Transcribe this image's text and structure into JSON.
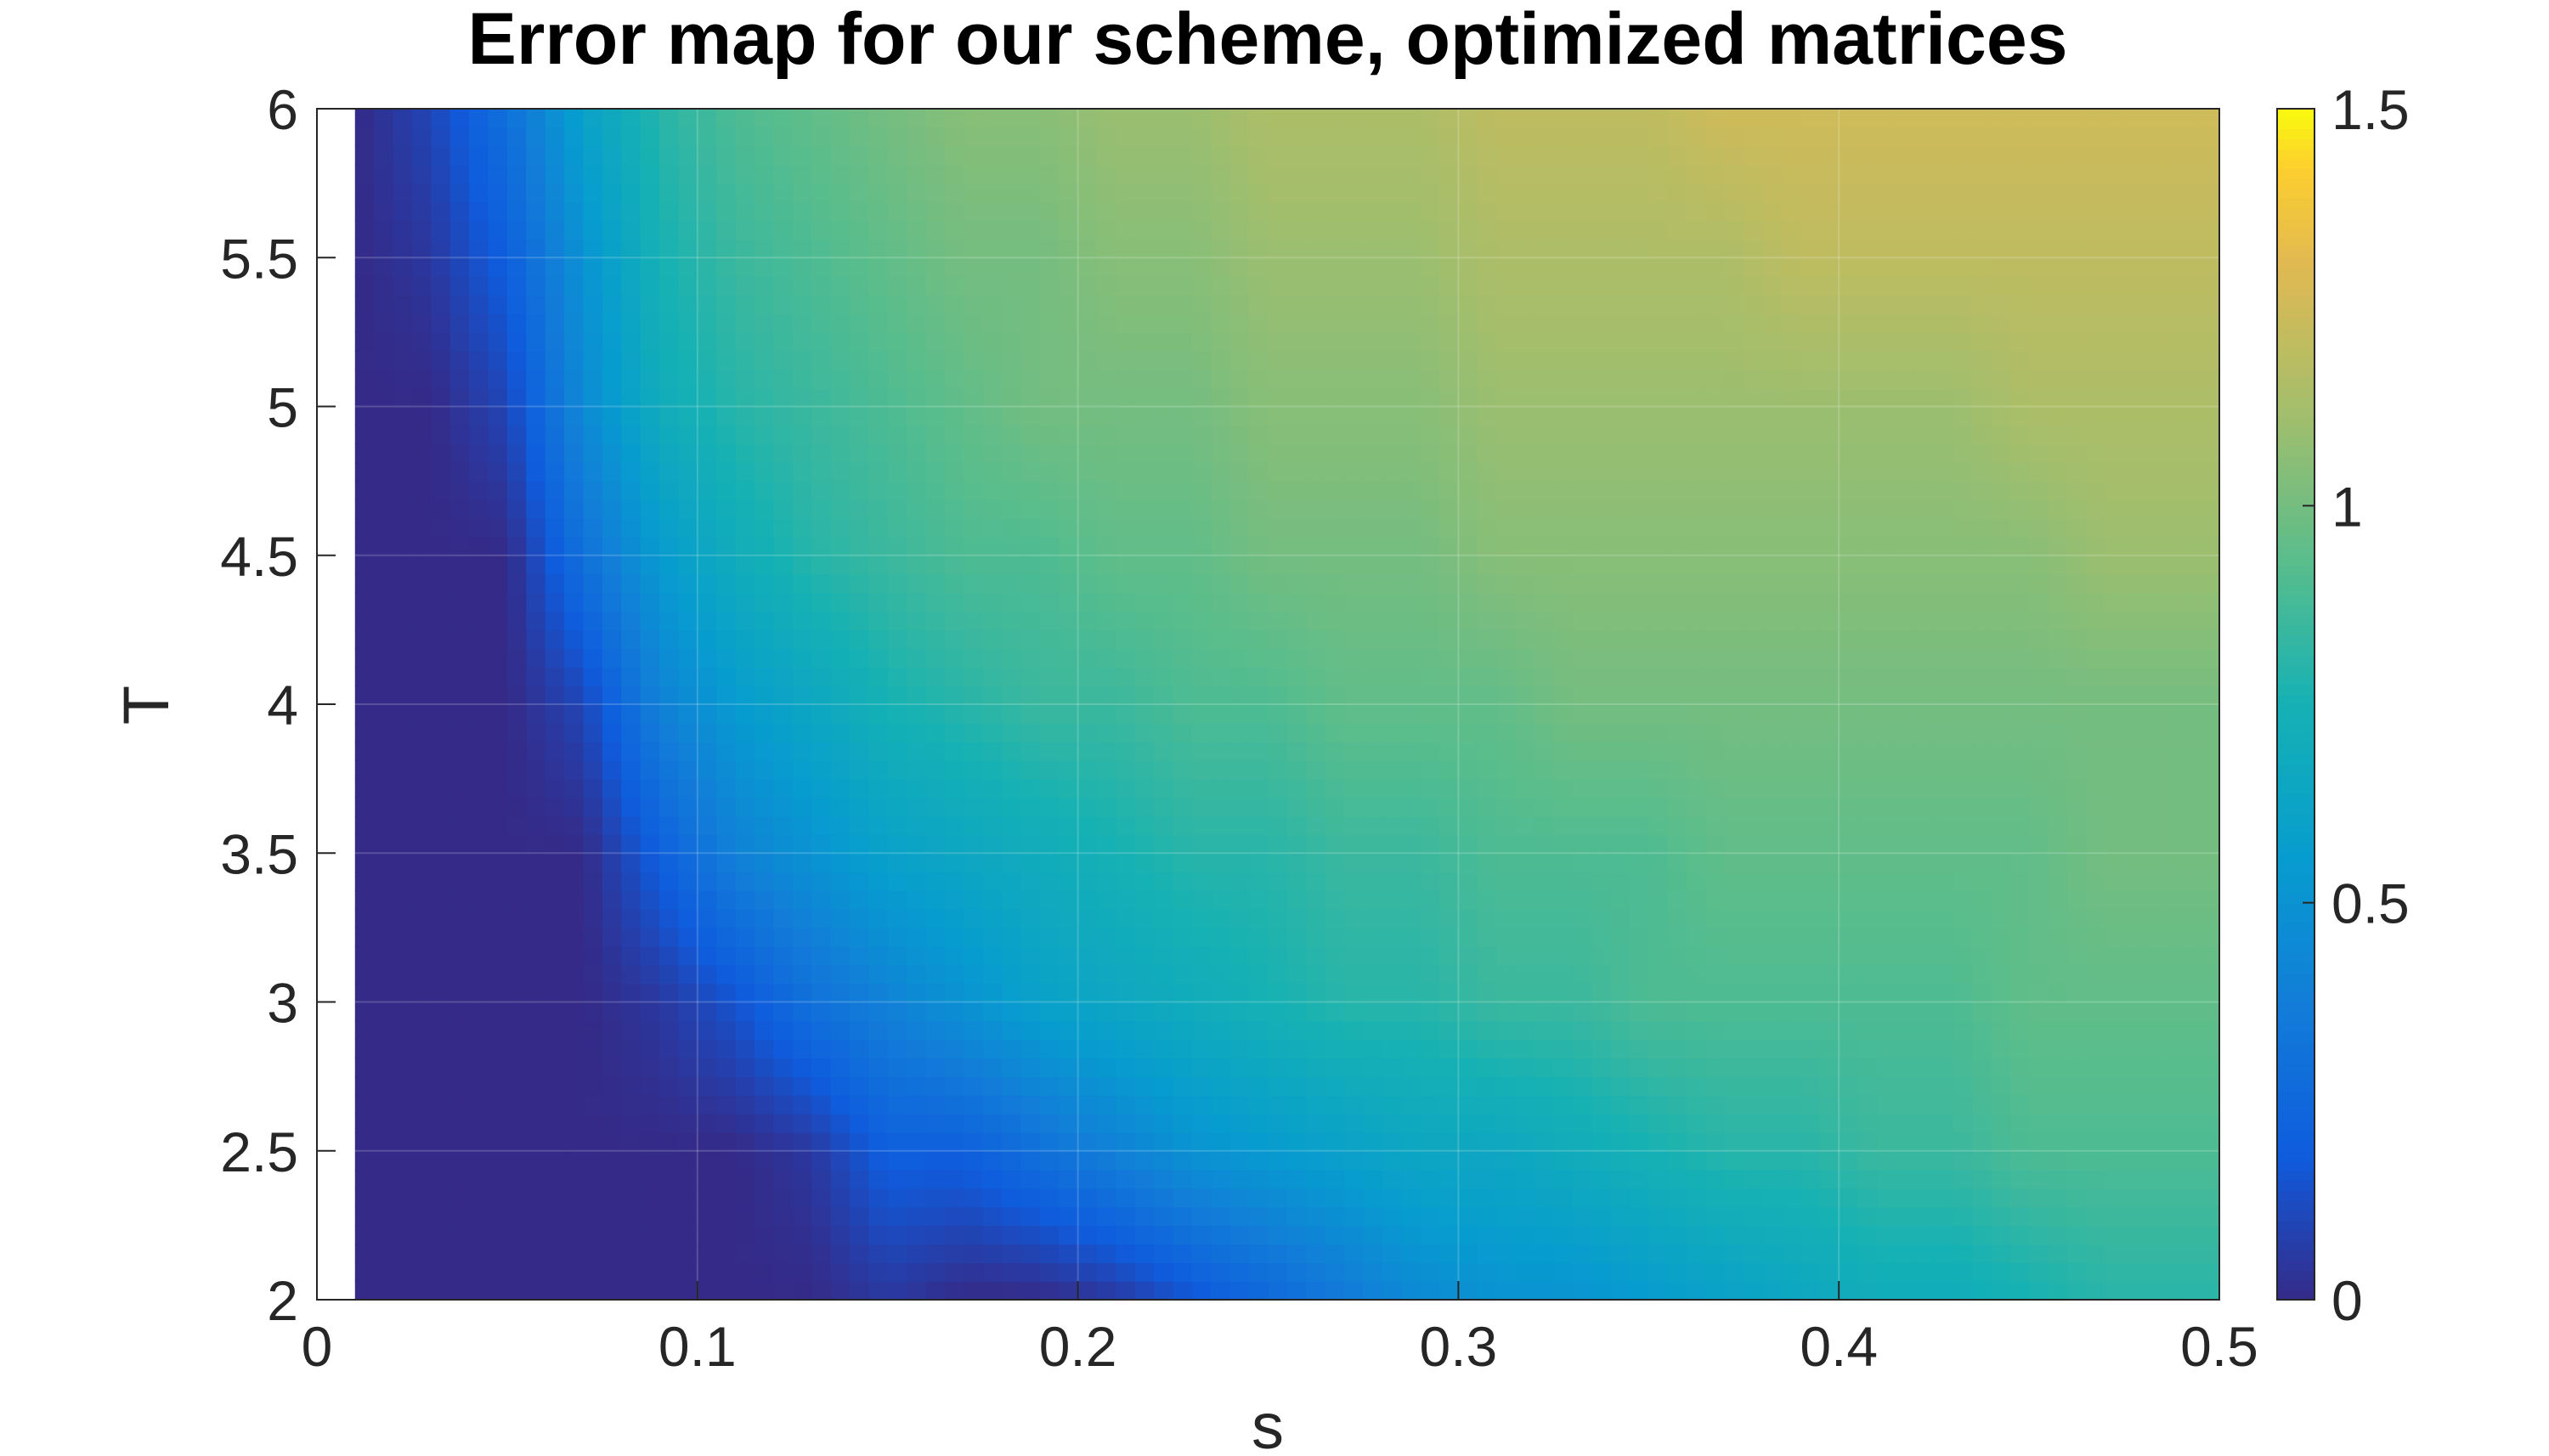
{
  "chart_data": {
    "type": "heatmap",
    "title": "Error map for our scheme, optimized matrices",
    "xlabel": "s",
    "ylabel": "T",
    "xlim": [
      0,
      0.5
    ],
    "ylim": [
      2,
      6
    ],
    "data_xlim": [
      0.01,
      0.5
    ],
    "x_ticks": [
      "0",
      "0.1",
      "0.2",
      "0.3",
      "0.4",
      "0.5"
    ],
    "y_ticks": [
      "2",
      "2.5",
      "3",
      "3.5",
      "4",
      "4.5",
      "5",
      "5.5",
      "6"
    ],
    "grid": true,
    "colormap": "parula",
    "colorbar": {
      "range": [
        0,
        1.5
      ],
      "ticks": [
        "0",
        "0.5",
        "1",
        "1.5"
      ],
      "position": "right"
    },
    "x": [
      0.01,
      0.03,
      0.05,
      0.07,
      0.09,
      0.11,
      0.13,
      0.15,
      0.17,
      0.19,
      0.21,
      0.23,
      0.25,
      0.27,
      0.29,
      0.31,
      0.33,
      0.35,
      0.37,
      0.39,
      0.41,
      0.43,
      0.45,
      0.47,
      0.49
    ],
    "y": [
      2.0,
      2.5,
      3.0,
      3.5,
      4.0,
      4.5,
      5.0,
      5.5,
      6.0
    ],
    "z": [
      [
        0.0,
        0.0,
        0.0,
        0.0,
        0.0,
        0.0,
        0.0,
        0.05,
        0.0,
        0.0,
        0.05,
        0.15,
        0.25,
        0.35,
        0.45,
        0.5,
        0.5,
        0.55,
        0.6,
        0.65,
        0.7,
        0.7,
        0.75,
        0.8,
        0.8
      ],
      [
        0.0,
        0.0,
        0.0,
        0.0,
        0.0,
        0.0,
        0.05,
        0.2,
        0.2,
        0.3,
        0.4,
        0.5,
        0.55,
        0.6,
        0.65,
        0.65,
        0.7,
        0.75,
        0.8,
        0.8,
        0.85,
        0.85,
        0.9,
        0.9,
        0.9
      ],
      [
        0.0,
        0.0,
        0.0,
        0.0,
        0.05,
        0.15,
        0.3,
        0.4,
        0.5,
        0.6,
        0.65,
        0.7,
        0.75,
        0.8,
        0.8,
        0.85,
        0.85,
        0.9,
        0.9,
        0.9,
        0.9,
        0.9,
        0.95,
        0.95,
        0.95
      ],
      [
        0.0,
        0.0,
        0.0,
        0.0,
        0.2,
        0.4,
        0.5,
        0.6,
        0.65,
        0.7,
        0.75,
        0.8,
        0.8,
        0.85,
        0.85,
        0.9,
        0.9,
        0.9,
        0.95,
        0.95,
        0.95,
        0.95,
        0.95,
        1.0,
        1.0
      ],
      [
        0.0,
        0.0,
        0.0,
        0.1,
        0.4,
        0.55,
        0.65,
        0.75,
        0.8,
        0.85,
        0.85,
        0.9,
        0.9,
        0.95,
        0.95,
        0.95,
        1.0,
        1.0,
        1.0,
        1.0,
        1.0,
        1.0,
        1.0,
        1.0,
        1.0
      ],
      [
        0.0,
        0.0,
        0.0,
        0.3,
        0.55,
        0.7,
        0.8,
        0.85,
        0.9,
        0.9,
        0.95,
        0.95,
        1.0,
        1.0,
        1.0,
        1.05,
        1.05,
        1.05,
        1.05,
        1.05,
        1.05,
        1.05,
        1.05,
        1.1,
        1.1
      ],
      [
        0.0,
        0.0,
        0.1,
        0.45,
        0.7,
        0.8,
        0.85,
        0.9,
        0.95,
        1.0,
        1.0,
        1.0,
        1.05,
        1.05,
        1.05,
        1.1,
        1.1,
        1.1,
        1.1,
        1.1,
        1.1,
        1.1,
        1.15,
        1.15,
        1.15
      ],
      [
        0.0,
        0.05,
        0.2,
        0.5,
        0.75,
        0.85,
        0.9,
        0.95,
        1.0,
        1.0,
        1.05,
        1.05,
        1.1,
        1.1,
        1.1,
        1.15,
        1.15,
        1.15,
        1.15,
        1.2,
        1.2,
        1.2,
        1.2,
        1.2,
        1.2
      ],
      [
        0.0,
        0.1,
        0.3,
        0.6,
        0.8,
        0.9,
        0.95,
        1.0,
        1.05,
        1.05,
        1.1,
        1.1,
        1.15,
        1.15,
        1.15,
        1.2,
        1.2,
        1.2,
        1.25,
        1.25,
        1.25,
        1.25,
        1.25,
        1.25,
        1.25
      ]
    ]
  }
}
